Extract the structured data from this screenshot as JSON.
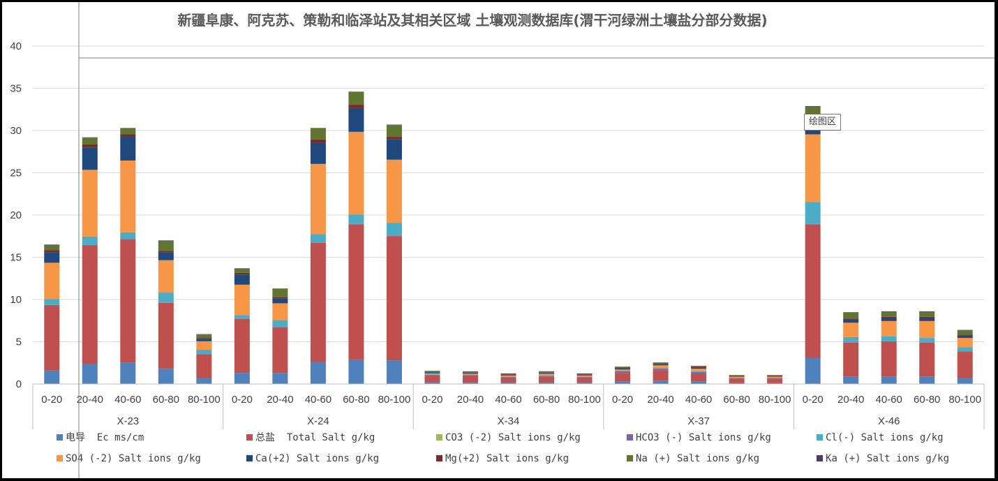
{
  "chart_data": {
    "type": "bar",
    "stacked": true,
    "title": "新疆阜康、阿克苏、策勒和临泽站及其相关区域 土壤观测数据库(渭干河绿洲土壤盐分部分数据)",
    "ylim": [
      0,
      40
    ],
    "yticks": [
      0,
      5,
      10,
      15,
      20,
      25,
      30,
      35,
      40
    ],
    "grid": true,
    "legend_position": "bottom",
    "groups": [
      {
        "name": "X-23",
        "categories": [
          "0-20",
          "20-40",
          "40-60",
          "60-80",
          "80-100"
        ]
      },
      {
        "name": "X-24",
        "categories": [
          "0-20",
          "20-40",
          "40-60",
          "60-80",
          "80-100"
        ]
      },
      {
        "name": "X-34",
        "categories": [
          "0-20",
          "20-40",
          "40-60",
          "60-80",
          "80-100"
        ]
      },
      {
        "name": "X-37",
        "categories": [
          "0-20",
          "20-40",
          "40-60",
          "60-80",
          "80-100"
        ]
      },
      {
        "name": "X-46",
        "categories": [
          "0-20",
          "20-40",
          "40-60",
          "60-80",
          "80-100"
        ]
      }
    ],
    "series": [
      {
        "name": "电导  Ec ms/cm",
        "color": "#4f81bd",
        "values": [
          1.6,
          2.4,
          2.5,
          1.8,
          0.7,
          1.3,
          1.3,
          2.6,
          2.9,
          2.8,
          0.2,
          0.15,
          0.15,
          0.15,
          0.15,
          0.3,
          0.4,
          0.3,
          0.1,
          0.1,
          3.1,
          0.9,
          0.9,
          0.9,
          0.7
        ]
      },
      {
        "name": "总盐  Total Salt g/kg",
        "color": "#c0504d",
        "values": [
          7.7,
          14.0,
          14.6,
          7.8,
          2.8,
          6.4,
          5.4,
          14.1,
          16.0,
          14.7,
          0.8,
          0.8,
          0.6,
          0.7,
          0.6,
          1.0,
          1.2,
          0.9,
          0.5,
          0.5,
          15.8,
          4.0,
          4.1,
          4.0,
          3.1
        ]
      },
      {
        "name": "CO3 (-2) Salt ions g/kg",
        "color": "#9bbb59",
        "values": [
          0,
          0,
          0,
          0,
          0,
          0,
          0,
          0,
          0,
          0,
          0,
          0,
          0,
          0,
          0,
          0,
          0,
          0,
          0,
          0,
          0,
          0,
          0,
          0,
          0
        ]
      },
      {
        "name": "HCO3 (-) Salt ions g/kg",
        "color": "#8064a2",
        "values": [
          0.05,
          0.05,
          0.05,
          0.05,
          0.05,
          0.05,
          0.05,
          0.05,
          0.05,
          0.05,
          0.1,
          0.1,
          0.1,
          0.1,
          0.1,
          0.2,
          0.2,
          0.2,
          0.1,
          0.1,
          0.05,
          0.05,
          0.05,
          0.05,
          0.05
        ]
      },
      {
        "name": "Cl(-) Salt ions g/kg",
        "color": "#4bacc6",
        "values": [
          0.7,
          1.0,
          0.8,
          1.2,
          0.5,
          0.4,
          0.8,
          1.0,
          1.1,
          1.5,
          0.05,
          0.05,
          0.05,
          0.05,
          0.05,
          0.1,
          0.1,
          0.1,
          0.05,
          0.05,
          2.6,
          0.6,
          0.6,
          0.5,
          0.5
        ]
      },
      {
        "name": "SO4 (-2) Salt ions g/kg",
        "color": "#f79646",
        "values": [
          4.3,
          7.9,
          8.5,
          3.8,
          1.0,
          3.6,
          2.0,
          8.3,
          9.8,
          7.5,
          0.1,
          0.1,
          0.1,
          0.2,
          0.1,
          0.1,
          0.3,
          0.3,
          0.1,
          0.1,
          8.0,
          1.7,
          1.8,
          2.0,
          1.1
        ]
      },
      {
        "name": "Ca(+2) Salt ions g/kg",
        "color": "#1f497d",
        "values": [
          1.2,
          2.6,
          2.8,
          0.9,
          0.3,
          1.2,
          0.6,
          2.5,
          2.8,
          2.4,
          0.1,
          0.1,
          0.1,
          0.1,
          0.1,
          0.1,
          0.1,
          0.1,
          0.05,
          0.05,
          1.2,
          0.4,
          0.4,
          0.4,
          0.3
        ]
      },
      {
        "name": "Mg(+2) Salt ions g/kg",
        "color": "#772c2a",
        "values": [
          0.3,
          0.4,
          0.3,
          0.2,
          0.1,
          0.2,
          0.1,
          0.4,
          0.4,
          0.3,
          0.05,
          0.05,
          0.05,
          0.05,
          0.05,
          0.1,
          0.1,
          0.1,
          0.05,
          0.05,
          0.3,
          0.1,
          0.1,
          0.1,
          0.1
        ]
      },
      {
        "name": "Na (+) Salt ions g/kg",
        "color": "#5f7530",
        "values": [
          0.6,
          0.8,
          0.7,
          1.2,
          0.4,
          0.5,
          1.0,
          1.3,
          1.5,
          1.4,
          0.1,
          0.1,
          0.05,
          0.1,
          0.05,
          0.1,
          0.1,
          0.1,
          0.05,
          0.05,
          1.8,
          0.7,
          0.6,
          0.6,
          0.5
        ]
      },
      {
        "name": "Ka (+) Salt ions g/kg",
        "color": "#4d3b62",
        "values": [
          0.05,
          0.05,
          0.05,
          0.05,
          0.05,
          0.05,
          0.05,
          0.05,
          0.05,
          0.05,
          0.05,
          0.05,
          0.05,
          0.05,
          0.05,
          0.05,
          0.05,
          0.05,
          0.05,
          0.05,
          0.05,
          0.05,
          0.05,
          0.05,
          0.05
        ]
      }
    ]
  },
  "tooltip": {
    "label": "绘图区"
  }
}
